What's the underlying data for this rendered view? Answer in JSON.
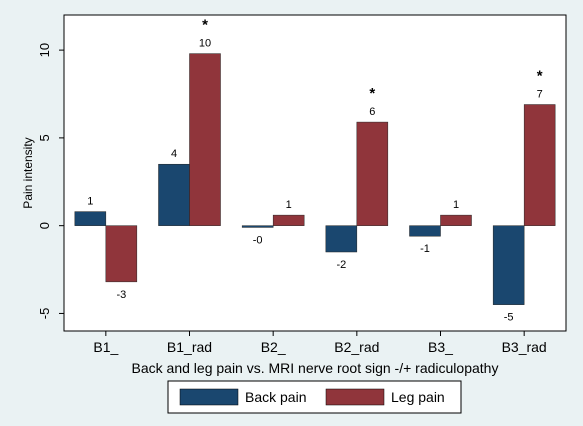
{
  "chart_data": {
    "type": "bar",
    "xlabel": "Back and leg pain vs. MRI nerve root sign -/+ radiculopathy",
    "ylabel": "Pain intensity",
    "ylim": [
      -6,
      12
    ],
    "yticks": [
      -5,
      0,
      5,
      10
    ],
    "ytick_labels": [
      "-5",
      "0",
      "5",
      "10"
    ],
    "grid": false,
    "legend_position": "bottom",
    "categories": [
      "B1_",
      "B1_rad",
      "B2_",
      "B2_rad",
      "B3_",
      "B3_rad"
    ],
    "series": [
      {
        "name": "Back pain",
        "color": "#1a476f",
        "values": [
          0.8,
          3.5,
          -0.1,
          -1.5,
          -0.6,
          -4.5
        ],
        "labels": [
          "1",
          "4",
          "-0",
          "-2",
          "-1",
          "-5"
        ]
      },
      {
        "name": "Leg pain",
        "color": "#90353b",
        "values": [
          -3.2,
          9.8,
          0.6,
          5.9,
          0.6,
          6.9
        ],
        "labels": [
          "-3",
          "10",
          "1",
          "6",
          "1",
          "7"
        ]
      }
    ],
    "annotations": [
      {
        "category": "B1_rad",
        "text": "*"
      },
      {
        "category": "B2_rad",
        "text": "*"
      },
      {
        "category": "B3_rad",
        "text": "*"
      }
    ]
  }
}
